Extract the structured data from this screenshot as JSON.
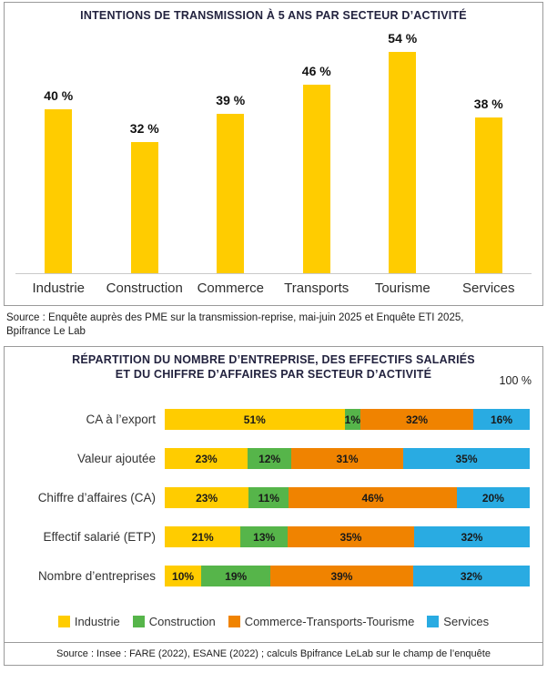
{
  "chart_data": [
    {
      "type": "bar",
      "title": "INTENTIONS DE TRANSMISSION À 5 ANS PAR SECTEUR D’ACTIVITÉ",
      "categories": [
        "Industrie",
        "Construction",
        "Commerce",
        "Transports",
        "Tourisme",
        "Services"
      ],
      "values": [
        40,
        32,
        39,
        46,
        54,
        38
      ],
      "unit_suffix": " %",
      "bar_color": "#FFCC00",
      "ylim": [
        0,
        60
      ],
      "grid": false,
      "value_labels_position": "above-bars"
    },
    {
      "type": "bar",
      "variant": "horizontal-stacked",
      "title_line1": "RÉPARTITION DU NOMBRE D’ENTREPRISE, DES EFFECTIFS SALARIÉS",
      "title_line2": "ET DU CHIFFRE D’AFFAIRES PAR SECTEUR D’ACTIVITÉ",
      "axis_max_label": "100 %",
      "unit_suffix": "%",
      "categories": [
        "CA à l’export",
        "Valeur ajoutée",
        "Chiffre d’affaires (CA)",
        "Effectif salarié (ETP)",
        "Nombre d’entreprises"
      ],
      "series": [
        {
          "name": "Industrie",
          "color": "#FFCC00",
          "values": [
            51,
            23,
            23,
            21,
            10
          ]
        },
        {
          "name": "Construction",
          "color": "#56B54A",
          "values": [
            1,
            12,
            11,
            13,
            19
          ]
        },
        {
          "name": "Commerce-Transports-Tourisme",
          "color": "#F08300",
          "values": [
            32,
            31,
            46,
            35,
            39
          ]
        },
        {
          "name": "Services",
          "color": "#29ABE2",
          "values": [
            16,
            35,
            20,
            32,
            32
          ]
        }
      ],
      "xlim": [
        0,
        100
      ],
      "legend_position": "bottom"
    }
  ],
  "sources": {
    "top": "Source : Enquête auprès des PME sur la transmission-reprise, mai-juin 2025 et Enquête ETI 2025, Bpifrance Le Lab",
    "bottom": "Source : Insee : FARE (2022), ESANE (2022) ; calculs Bpifrance LeLab sur le champ de l’enquête"
  },
  "colors": {
    "title": "#23233F",
    "industrie_yellow": "#FFCC00",
    "construction_green": "#56B54A",
    "commerce_orange": "#F08300",
    "services_blue": "#29ABE2",
    "panel_border": "#9A9A9A"
  }
}
